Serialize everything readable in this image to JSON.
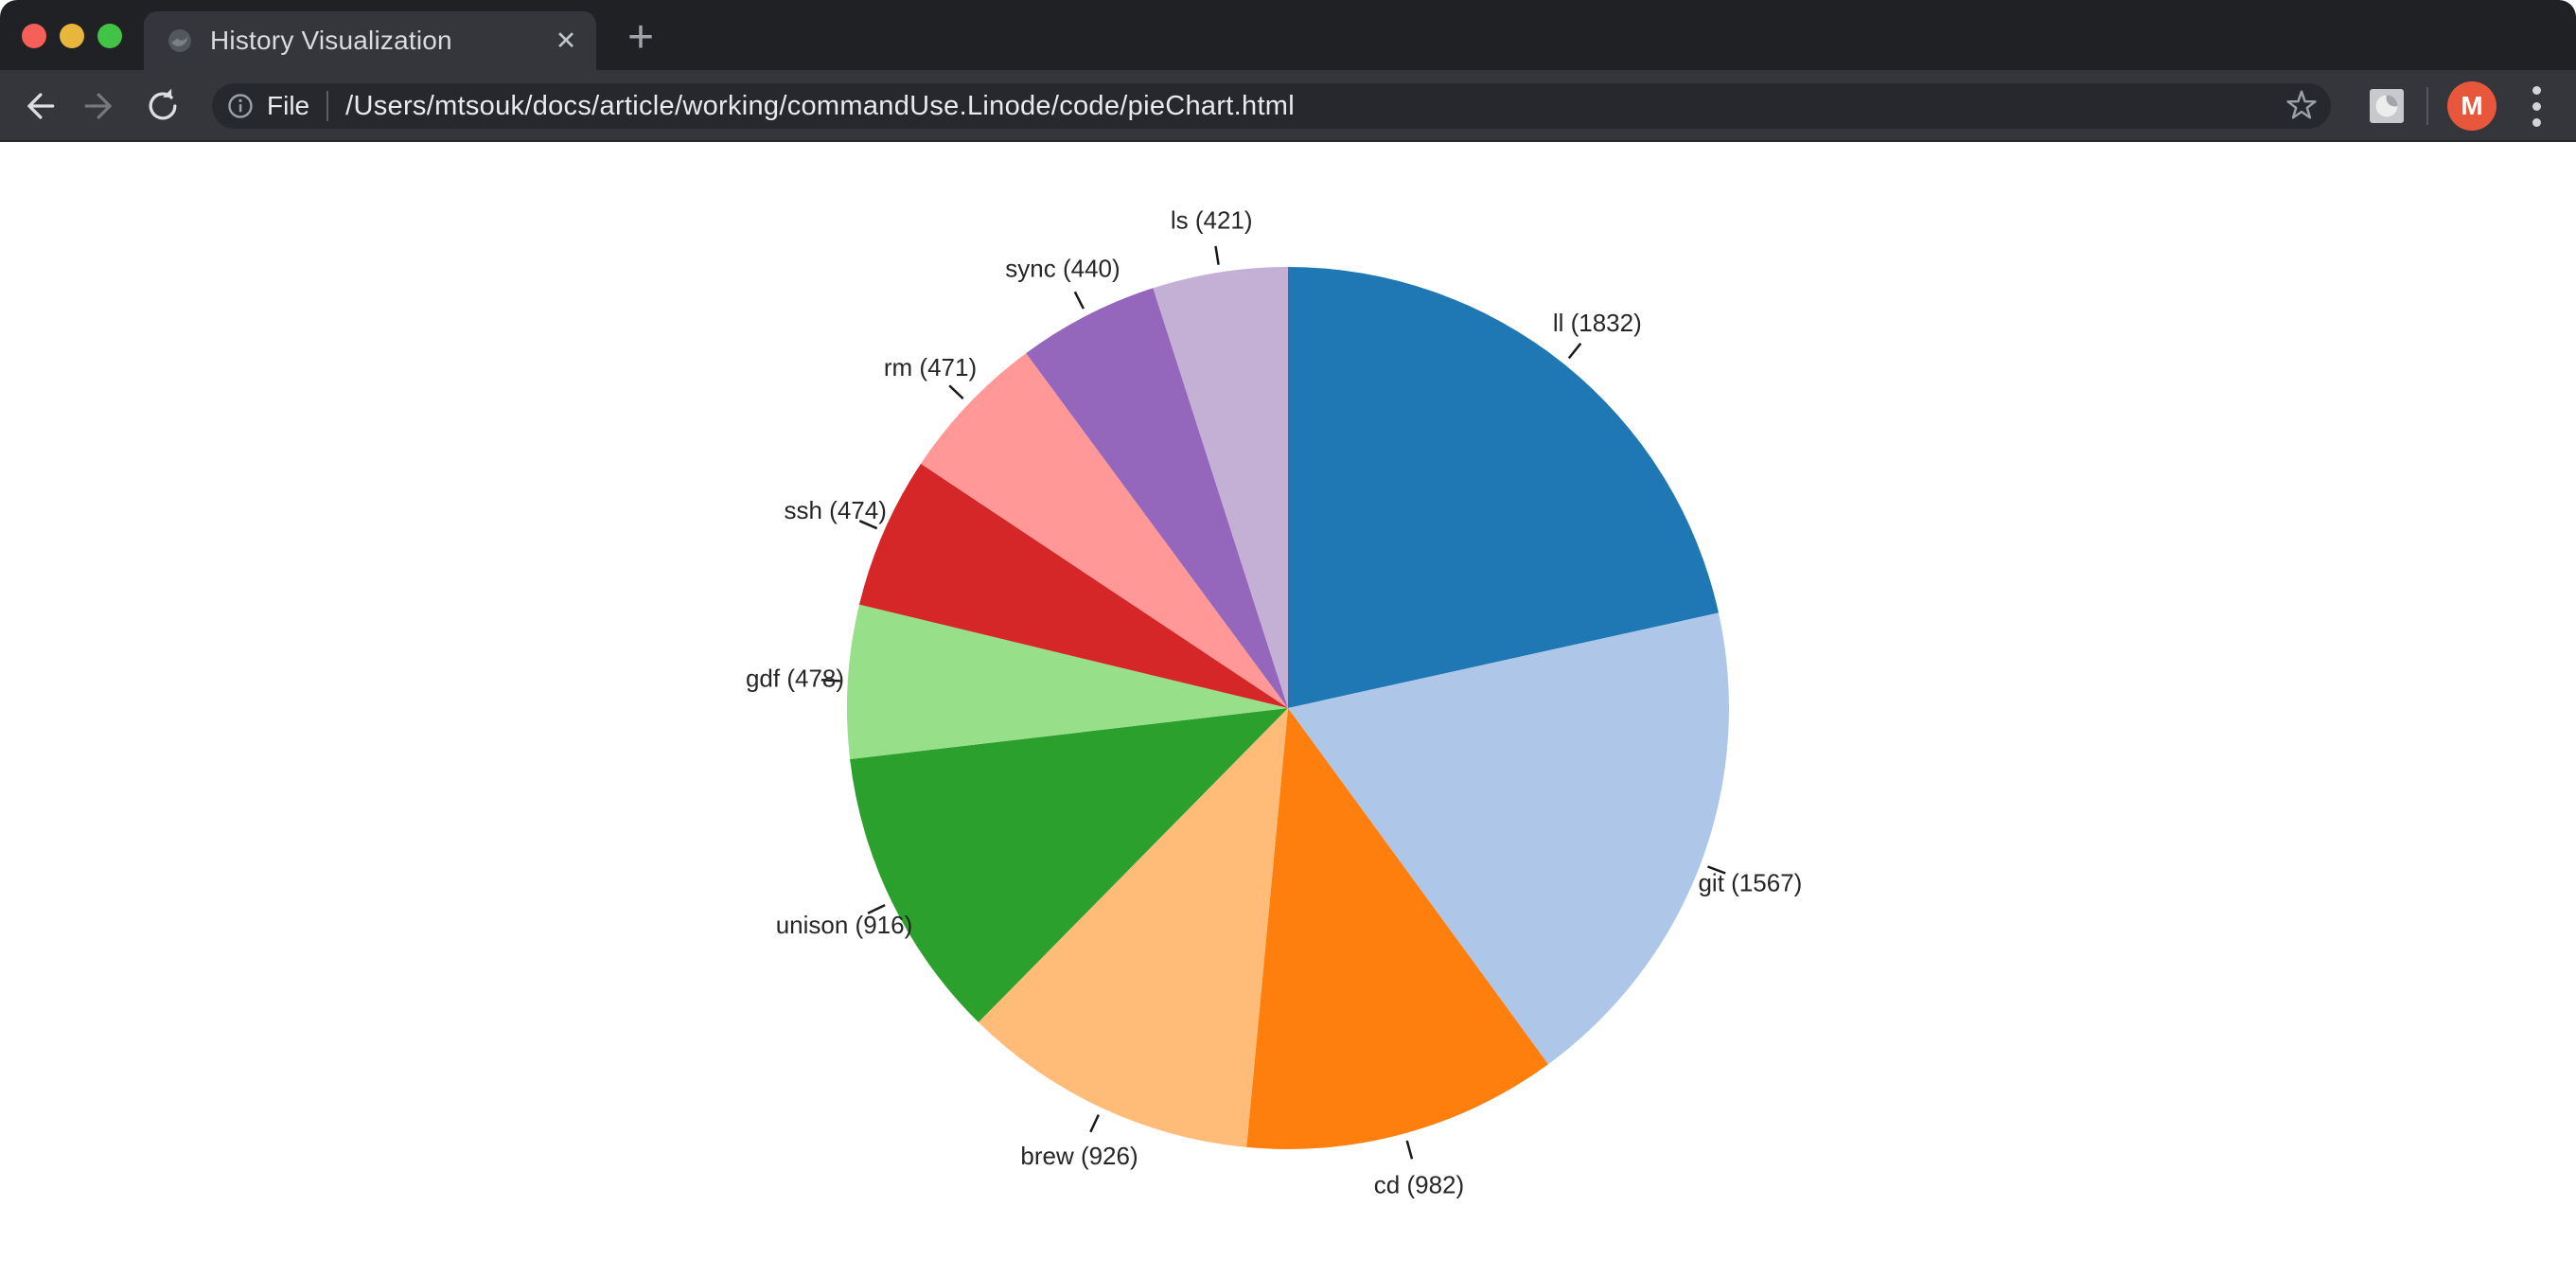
{
  "browser": {
    "window_controls": {
      "close_color": "#F75F58",
      "minimize_color": "#E8B63C",
      "zoom_color": "#41C345"
    },
    "tab": {
      "title": "History Visualization",
      "close_glyph": "✕"
    },
    "new_tab_glyph": "+",
    "url_bar": {
      "scheme_label": "File",
      "url": "/Users/mtsouk/docs/article/working/commandUse.Linode/code/pieChart.html"
    },
    "profile": {
      "initial": "M",
      "color": "#E8573C"
    },
    "icons": [
      "globe-favicon-icon",
      "back-arrow-icon",
      "forward-arrow-icon",
      "reload-icon",
      "info-icon",
      "bookmark-star-icon",
      "extension-swirl-icon",
      "kebab-menu-icon"
    ]
  },
  "chart_data": {
    "type": "pie",
    "direction": "clockwise",
    "start_angle_deg": 0,
    "label_format": "{label} ({value})",
    "total": 8507,
    "label_color": "#262626",
    "series": [
      {
        "label": "ll",
        "value": 1832,
        "color": "#1F77B4"
      },
      {
        "label": "git",
        "value": 1567,
        "color": "#AEC7E8"
      },
      {
        "label": "cd",
        "value": 982,
        "color": "#FF7F0E"
      },
      {
        "label": "brew",
        "value": 926,
        "color": "#FFBB78"
      },
      {
        "label": "unison",
        "value": 916,
        "color": "#2CA02C"
      },
      {
        "label": "gdf",
        "value": 478,
        "color": "#98DF8A"
      },
      {
        "label": "ssh",
        "value": 474,
        "color": "#D62728"
      },
      {
        "label": "rm",
        "value": 471,
        "color": "#FF9896"
      },
      {
        "label": "sync",
        "value": 440,
        "color": "#9467BD"
      },
      {
        "label": "ls",
        "value": 421,
        "color": "#C5B0D5"
      }
    ]
  }
}
